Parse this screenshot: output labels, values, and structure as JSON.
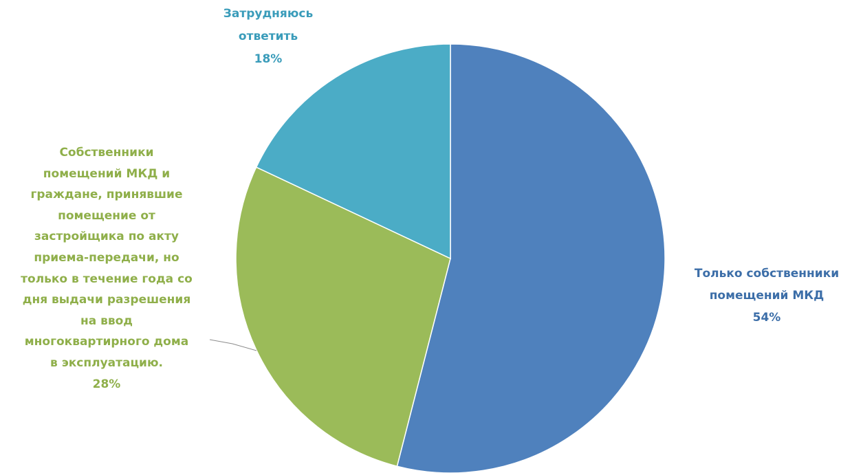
{
  "chart_data": {
    "type": "pie",
    "title": "",
    "start": "12 o'clock, clockwise",
    "slices": [
      {
        "label_lines": [
          "Только собственники",
          "помещений МКД"
        ],
        "percent_label": "54%",
        "value": 54,
        "color": "#4f81bd",
        "label_color": "#3c6ea8"
      },
      {
        "label_lines": [
          "Собственники",
          "помещений МКД и",
          "граждане, принявшие",
          "помещение от",
          "застройщика  по акту",
          "приема-передачи,  но",
          "только  в течение года со",
          "дня выдачи разрешения",
          "на ввод",
          "многоквартирного  дома",
          "в эксплуатацию."
        ],
        "percent_label": "28%",
        "value": 28,
        "color": "#9bbb59",
        "label_color": "#8faf4a"
      },
      {
        "label_lines": [
          "Затрудняюсь",
          "ответить"
        ],
        "percent_label": "18%",
        "value": 18,
        "color": "#4bacc6",
        "label_color": "#3a9cba"
      }
    ]
  }
}
